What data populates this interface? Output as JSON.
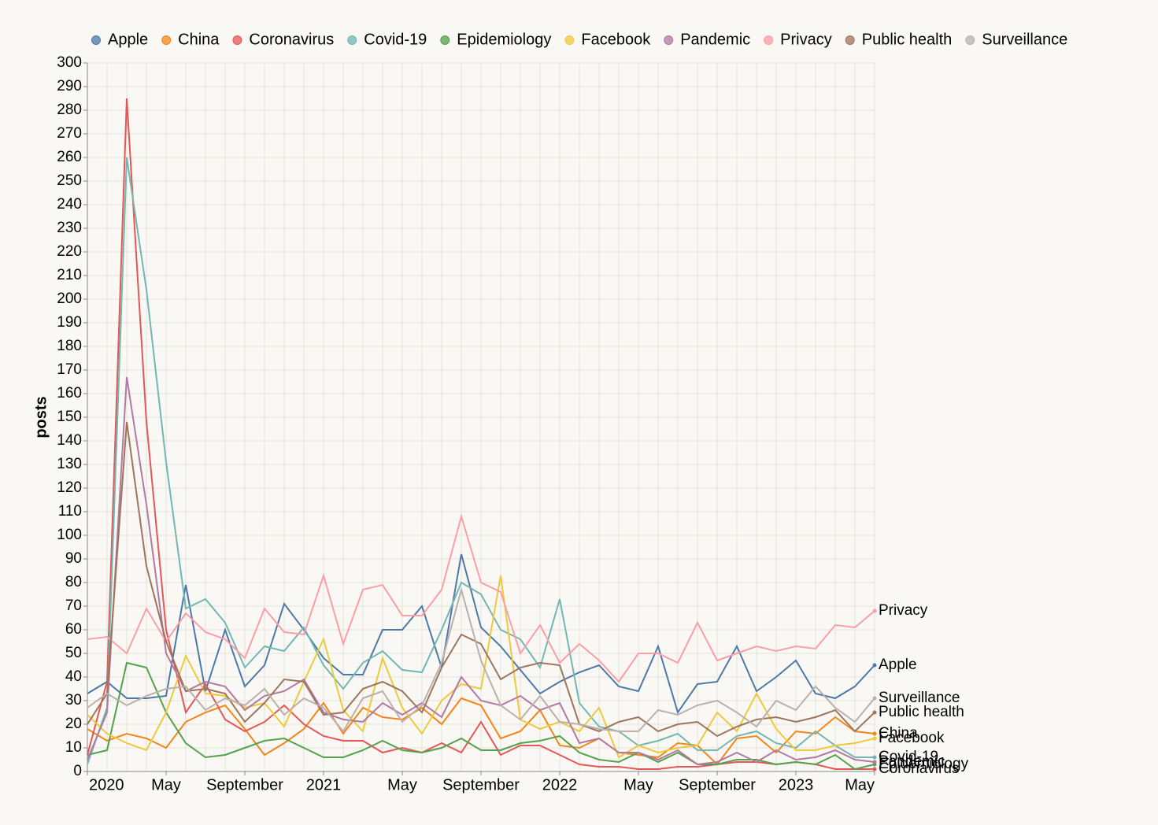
{
  "chart_data": {
    "type": "line",
    "y_label": "posts",
    "x": [
      "2020-01",
      "2020-02",
      "2020-03",
      "2020-04",
      "2020-05",
      "2020-06",
      "2020-07",
      "2020-08",
      "2020-09",
      "2020-10",
      "2020-11",
      "2020-12",
      "2021-01",
      "2021-02",
      "2021-03",
      "2021-04",
      "2021-05",
      "2021-06",
      "2021-07",
      "2021-08",
      "2021-09",
      "2021-10",
      "2021-11",
      "2021-12",
      "2022-01",
      "2022-02",
      "2022-03",
      "2022-04",
      "2022-05",
      "2022-06",
      "2022-07",
      "2022-08",
      "2022-09",
      "2022-10",
      "2022-11",
      "2022-12",
      "2023-01",
      "2023-02",
      "2023-03",
      "2023-04",
      "2023-05"
    ],
    "xticks": [
      {
        "value": "2020-01",
        "label": "2020"
      },
      {
        "value": "2020-05",
        "label": "May"
      },
      {
        "value": "2020-09",
        "label": "September"
      },
      {
        "value": "2021-01",
        "label": "2021"
      },
      {
        "value": "2021-05",
        "label": "May"
      },
      {
        "value": "2021-09",
        "label": "September"
      },
      {
        "value": "2022-01",
        "label": "2022"
      },
      {
        "value": "2022-05",
        "label": "May"
      },
      {
        "value": "2022-09",
        "label": "September"
      },
      {
        "value": "2023-01",
        "label": "2023"
      },
      {
        "value": "2023-05",
        "label": "May"
      }
    ],
    "ylim": [
      0,
      300
    ],
    "yticks": [
      0,
      10,
      20,
      30,
      40,
      50,
      60,
      70,
      80,
      90,
      100,
      110,
      120,
      130,
      140,
      150,
      160,
      170,
      180,
      190,
      200,
      210,
      220,
      230,
      240,
      250,
      260,
      270,
      280,
      290,
      300
    ],
    "grid": true,
    "legend": "top",
    "series": [
      {
        "name": "Apple",
        "color": "#4c78a8",
        "values": [
          33,
          38,
          31,
          31,
          32,
          79,
          34,
          60,
          36,
          45,
          71,
          60,
          48,
          41,
          41,
          60,
          60,
          70,
          44,
          92,
          61,
          53,
          43,
          33,
          38,
          42,
          45,
          36,
          34,
          53,
          25,
          37,
          38,
          53,
          34,
          40,
          47,
          33,
          31,
          36,
          45
        ]
      },
      {
        "name": "China",
        "color": "#f58518",
        "values": [
          18,
          13,
          16,
          14,
          10,
          21,
          25,
          28,
          18,
          7,
          12,
          18,
          29,
          16,
          27,
          23,
          22,
          27,
          20,
          31,
          28,
          14,
          17,
          26,
          11,
          10,
          14,
          8,
          7,
          6,
          12,
          11,
          3,
          14,
          15,
          8,
          17,
          16,
          23,
          17,
          16
        ]
      },
      {
        "name": "Coronavirus",
        "color": "#e45756",
        "values": [
          7,
          38,
          285,
          148,
          60,
          25,
          37,
          22,
          17,
          21,
          28,
          20,
          15,
          13,
          13,
          8,
          10,
          8,
          12,
          8,
          21,
          7,
          11,
          11,
          7,
          3,
          2,
          2,
          1,
          1,
          2,
          2,
          3,
          4,
          4,
          3,
          4,
          3,
          1,
          1,
          1
        ]
      },
      {
        "name": "Covid-19",
        "color": "#72b7b2",
        "values": [
          3,
          27,
          260,
          204,
          131,
          69,
          73,
          63,
          44,
          53,
          51,
          61,
          45,
          35,
          46,
          51,
          43,
          42,
          60,
          80,
          75,
          60,
          56,
          44,
          73,
          29,
          19,
          17,
          11,
          13,
          16,
          9,
          9,
          15,
          17,
          12,
          10,
          17,
          11,
          6,
          6
        ]
      },
      {
        "name": "Epidemiology",
        "color": "#54a24b",
        "values": [
          7,
          9,
          46,
          44,
          25,
          12,
          6,
          7,
          10,
          13,
          14,
          10,
          6,
          6,
          9,
          13,
          9,
          8,
          10,
          14,
          9,
          9,
          12,
          13,
          15,
          8,
          5,
          4,
          8,
          4,
          8,
          3,
          3,
          5,
          5,
          3,
          4,
          3,
          7,
          1,
          3
        ]
      },
      {
        "name": "Facebook",
        "color": "#eeca3b",
        "values": [
          24,
          16,
          12,
          9,
          25,
          49,
          33,
          32,
          27,
          29,
          19,
          38,
          56,
          26,
          17,
          48,
          27,
          16,
          30,
          37,
          35,
          83,
          22,
          18,
          21,
          17,
          27,
          6,
          11,
          8,
          10,
          11,
          25,
          17,
          33,
          18,
          9,
          9,
          11,
          12,
          14
        ]
      },
      {
        "name": "Pandemic",
        "color": "#b279a2",
        "values": [
          5,
          25,
          167,
          113,
          50,
          34,
          38,
          36,
          26,
          32,
          34,
          39,
          25,
          22,
          21,
          29,
          24,
          29,
          23,
          40,
          30,
          28,
          32,
          26,
          29,
          12,
          14,
          8,
          8,
          5,
          9,
          3,
          4,
          8,
          4,
          9,
          5,
          6,
          9,
          5,
          4
        ]
      },
      {
        "name": "Privacy",
        "color": "#ff9da6",
        "values": [
          56,
          57,
          50,
          69,
          55,
          67,
          59,
          56,
          48,
          69,
          59,
          58,
          83,
          54,
          77,
          79,
          66,
          66,
          77,
          108,
          80,
          76,
          50,
          62,
          46,
          54,
          47,
          38,
          50,
          50,
          46,
          63,
          47,
          50,
          53,
          51,
          53,
          52,
          62,
          61,
          68
        ]
      },
      {
        "name": "Public health",
        "color": "#9d755d",
        "values": [
          20,
          33,
          148,
          87,
          55,
          34,
          35,
          33,
          21,
          29,
          39,
          38,
          24,
          25,
          35,
          38,
          34,
          25,
          44,
          58,
          54,
          39,
          44,
          46,
          45,
          20,
          17,
          21,
          23,
          17,
          20,
          21,
          15,
          19,
          22,
          23,
          21,
          23,
          26,
          17,
          25
        ]
      },
      {
        "name": "Surveillance",
        "color": "#bab0ac",
        "values": [
          27,
          33,
          28,
          32,
          35,
          36,
          26,
          31,
          28,
          35,
          24,
          31,
          27,
          17,
          31,
          34,
          21,
          28,
          46,
          77,
          47,
          28,
          22,
          32,
          21,
          20,
          18,
          17,
          17,
          26,
          24,
          28,
          30,
          25,
          19,
          30,
          26,
          36,
          27,
          21,
          31
        ]
      }
    ]
  }
}
